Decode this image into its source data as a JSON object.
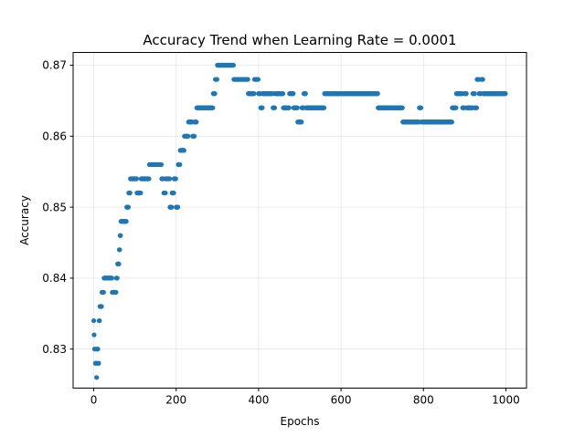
{
  "chart_data": {
    "type": "scatter",
    "title": "Accuracy Trend when Learning Rate = 0.0001",
    "xlabel": "Epochs",
    "ylabel": "Accuracy",
    "xlim": [
      -50,
      1050
    ],
    "ylim": [
      0.8245,
      0.8718
    ],
    "xticks": [
      0,
      200,
      400,
      600,
      800,
      1000
    ],
    "yticks": [
      0.83,
      0.84,
      0.85,
      0.86,
      0.87
    ],
    "ytick_labels": [
      "0.83",
      "0.84",
      "0.85",
      "0.86",
      "0.87"
    ],
    "grid": true,
    "marker_color": "#1f77b4",
    "series": [
      {
        "segments": [
          [
            0,
            0,
            0.834
          ],
          [
            1,
            1,
            0.832
          ],
          [
            2,
            3,
            0.83
          ],
          [
            4,
            6,
            0.828
          ],
          [
            7,
            7,
            0.826
          ],
          [
            8,
            10,
            0.83
          ],
          [
            11,
            12,
            0.828
          ],
          [
            13,
            14,
            0.834
          ],
          [
            15,
            19,
            0.836
          ],
          [
            20,
            24,
            0.838
          ],
          [
            25,
            44,
            0.84
          ],
          [
            45,
            54,
            0.838
          ],
          [
            55,
            57,
            0.84
          ],
          [
            58,
            61,
            0.842
          ],
          [
            62,
            63,
            0.844
          ],
          [
            64,
            65,
            0.846
          ],
          [
            66,
            79,
            0.848
          ],
          [
            80,
            84,
            0.85
          ],
          [
            85,
            88,
            0.852
          ],
          [
            89,
            104,
            0.854
          ],
          [
            105,
            114,
            0.852
          ],
          [
            115,
            134,
            0.854
          ],
          [
            135,
            164,
            0.856
          ],
          [
            165,
            169,
            0.854
          ],
          [
            170,
            174,
            0.852
          ],
          [
            175,
            184,
            0.854
          ],
          [
            185,
            189,
            0.85
          ],
          [
            190,
            194,
            0.852
          ],
          [
            195,
            199,
            0.854
          ],
          [
            200,
            204,
            0.85
          ],
          [
            205,
            209,
            0.856
          ],
          [
            210,
            219,
            0.858
          ],
          [
            220,
            229,
            0.86
          ],
          [
            230,
            239,
            0.862
          ],
          [
            240,
            244,
            0.86
          ],
          [
            245,
            249,
            0.862
          ],
          [
            250,
            289,
            0.864
          ],
          [
            290,
            294,
            0.866
          ],
          [
            295,
            299,
            0.868
          ],
          [
            300,
            339,
            0.87
          ],
          [
            340,
            374,
            0.868
          ],
          [
            375,
            389,
            0.866
          ],
          [
            390,
            399,
            0.868
          ],
          [
            400,
            404,
            0.866
          ],
          [
            405,
            409,
            0.864
          ],
          [
            410,
            434,
            0.866
          ],
          [
            435,
            439,
            0.864
          ],
          [
            440,
            459,
            0.866
          ],
          [
            460,
            474,
            0.864
          ],
          [
            475,
            484,
            0.866
          ],
          [
            485,
            494,
            0.864
          ],
          [
            495,
            504,
            0.862
          ],
          [
            505,
            509,
            0.864
          ],
          [
            510,
            514,
            0.866
          ],
          [
            515,
            559,
            0.864
          ],
          [
            560,
            689,
            0.866
          ],
          [
            690,
            749,
            0.864
          ],
          [
            750,
            789,
            0.862
          ],
          [
            790,
            794,
            0.864
          ],
          [
            795,
            869,
            0.862
          ],
          [
            870,
            879,
            0.864
          ],
          [
            880,
            894,
            0.866
          ],
          [
            895,
            899,
            0.864
          ],
          [
            900,
            904,
            0.866
          ],
          [
            905,
            919,
            0.864
          ],
          [
            920,
            924,
            0.866
          ],
          [
            925,
            929,
            0.864
          ],
          [
            930,
            934,
            0.868
          ],
          [
            935,
            939,
            0.866
          ],
          [
            940,
            944,
            0.868
          ],
          [
            945,
            999,
            0.866
          ]
        ]
      }
    ]
  }
}
